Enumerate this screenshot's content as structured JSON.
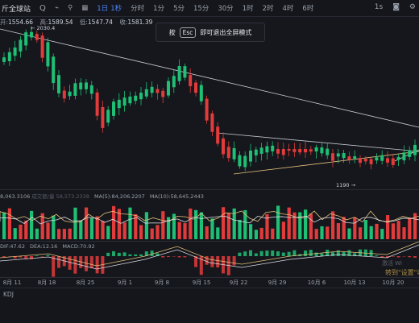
{
  "toolbar": {
    "symbol": "斤全球站",
    "items": [
      {
        "label": "Q",
        "icon": "search-icon"
      },
      {
        "label": "分時"
      },
      {
        "label": "1日",
        "active": true
      },
      {
        "label": "1秒"
      },
      {
        "label": "分时"
      },
      {
        "label": "1分"
      },
      {
        "label": "5分"
      },
      {
        "label": "15分"
      },
      {
        "label": "30分"
      },
      {
        "label": "1时"
      },
      {
        "label": "2时"
      },
      {
        "label": "4时"
      },
      {
        "label": "6时"
      }
    ],
    "right_items": [
      "1s",
      "camera-icon",
      "settings-icon"
    ]
  },
  "ohlc": {
    "open_label": "开:",
    "open": "1554.66",
    "high_label": "高:",
    "high": "1589.54",
    "low_label": "低:",
    "low": "1547.74",
    "close_label": "收:",
    "close": "1581.39"
  },
  "toast": {
    "press": "按",
    "key": "Esc",
    "text": "即可退出全屏模式"
  },
  "price_labels": {
    "high": "2030.4",
    "low": "1190"
  },
  "volume": {
    "text1": "8,063.3106",
    "text2": "成交额/量",
    "text3": "58,573.2338",
    "ma5": "MA(5):84,206.2207",
    "ma10": "MA(10):58,645.2443"
  },
  "macd": {
    "dif": "DIF:47.62",
    "dea": "DEA:12.16",
    "macd": "MACD:70.92"
  },
  "xaxis": [
    "8月 11",
    "8月 18",
    "8月 25",
    "9月 1",
    "9月 8",
    "9月 15",
    "9月 22",
    "9月 29",
    "10月 6",
    "10月 13",
    "10月 20"
  ],
  "bottom": {
    "indicator": "KDJ"
  },
  "watermark": {
    "line1": "转到\"设置\"以",
    "line2": "激活 Wi"
  },
  "colors": {
    "up": "#1fbf75",
    "down": "#e23b3b",
    "bg": "#15171c"
  }
}
